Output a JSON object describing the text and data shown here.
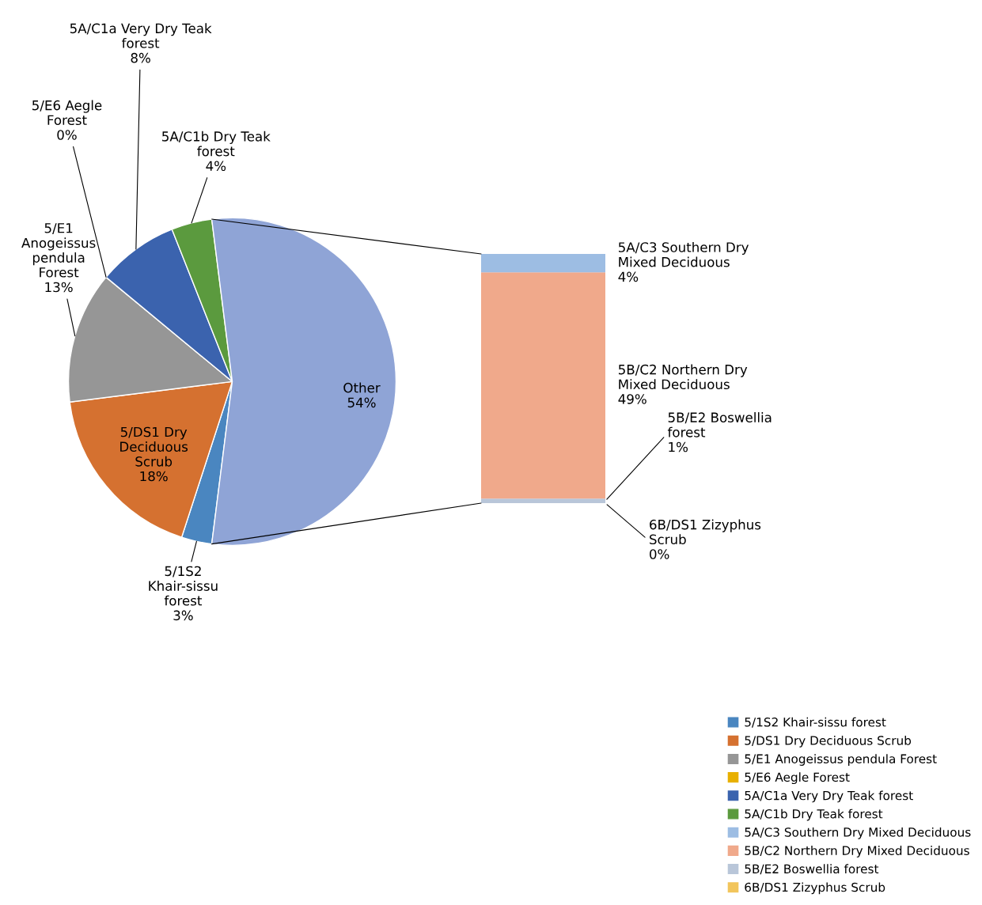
{
  "chart_data": [
    {
      "type": "pie",
      "categories": [
        "5/1S2 Khair-sissu forest",
        "5/DS1 Dry Deciduous Scrub",
        "5/E1 Anogeissus pendula Forest",
        "5/E6 Aegle Forest",
        "5A/C1a Very Dry Teak forest",
        "5A/C1b Dry Teak forest",
        "Other"
      ],
      "values": [
        3,
        18,
        13,
        0,
        8,
        4,
        54
      ],
      "value_labels": [
        "3%",
        "18%",
        "13%",
        "0%",
        "8%",
        "4%",
        "54%"
      ],
      "colors": [
        "#4a86c0",
        "#d57130",
        "#969696",
        "#e8b000",
        "#3b63ae",
        "#5b9a3e",
        "#8fa4d6"
      ],
      "legend": "right"
    },
    {
      "type": "other",
      "categories": [
        null
      ],
      "series": [
        {
          "name": "6B/DS1 Zizyphus Scrub",
          "color": "#f2c55c",
          "values": [
            0
          ],
          "value_labels": [
            "0%"
          ]
        },
        {
          "name": "5B/E2 Boswellia forest",
          "color": "#b9c6d9",
          "values": [
            1
          ],
          "value_labels": [
            "1%"
          ]
        },
        {
          "name": "5B/C2 Northern Dry Mixed Deciduous",
          "color": "#f0a98b",
          "values": [
            49
          ],
          "value_labels": [
            "49%"
          ]
        },
        {
          "name": "5A/C3 Southern Dry Mixed Deciduous",
          "color": "#9dbde3",
          "values": [
            4
          ],
          "value_labels": [
            "4%"
          ]
        }
      ],
      "legend": "right"
    }
  ]
}
